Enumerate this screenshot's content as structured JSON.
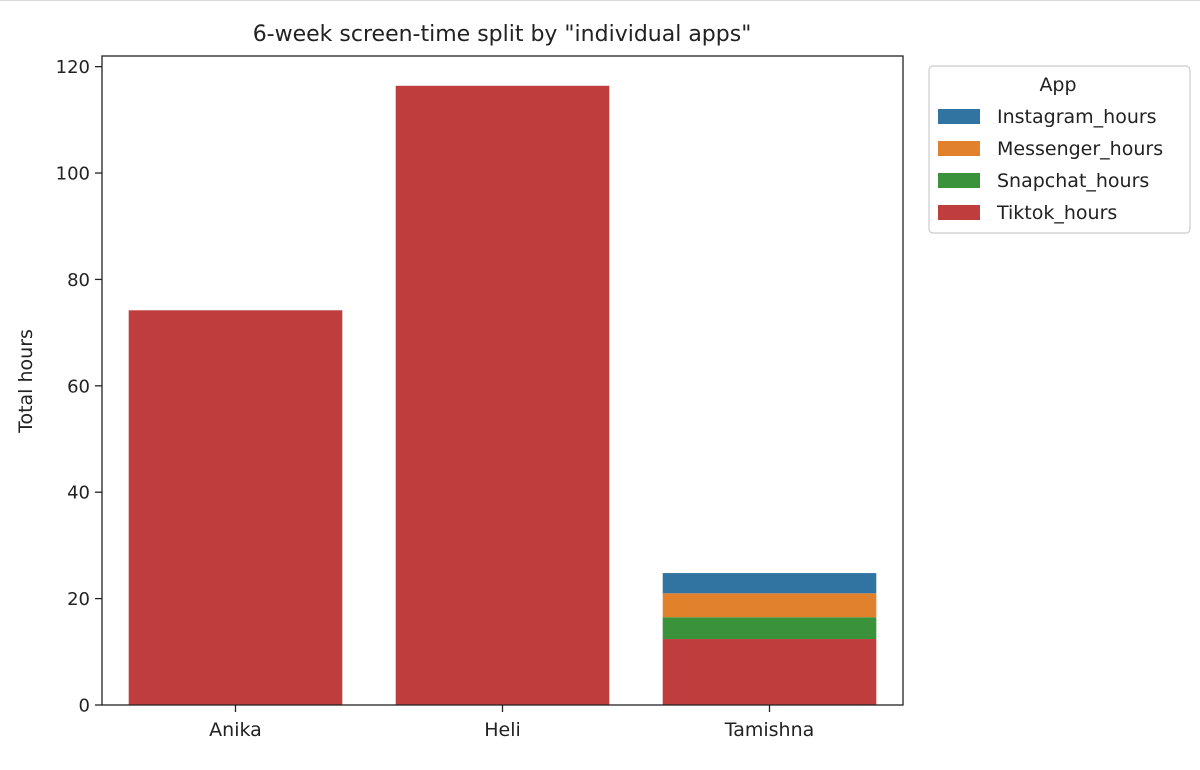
{
  "chart_data": {
    "type": "bar",
    "stacked": true,
    "title": "6-week screen-time split by \"individual apps\"",
    "xlabel": "",
    "ylabel": "Total hours",
    "categories": [
      "Anika",
      "Heli",
      "Tamishna"
    ],
    "ylim": [
      0,
      122
    ],
    "yticks": [
      0,
      20,
      40,
      60,
      80,
      100,
      120
    ],
    "grid": false,
    "series": [
      {
        "name": "Tiktok_hours",
        "color": "#c03d3e",
        "values": [
          74.2,
          116.4,
          12.4
        ]
      },
      {
        "name": "Snapchat_hours",
        "color": "#3a923a",
        "values": [
          0,
          0,
          4.1
        ]
      },
      {
        "name": "Messenger_hours",
        "color": "#e1812c",
        "values": [
          0,
          0,
          4.5
        ]
      },
      {
        "name": "Instagram_hours",
        "color": "#3274a1",
        "values": [
          0,
          0,
          3.8
        ]
      }
    ],
    "legend": {
      "title": "App",
      "placement": "outside-top-right",
      "entries": [
        "Instagram_hours",
        "Messenger_hours",
        "Snapchat_hours",
        "Tiktok_hours"
      ]
    }
  }
}
